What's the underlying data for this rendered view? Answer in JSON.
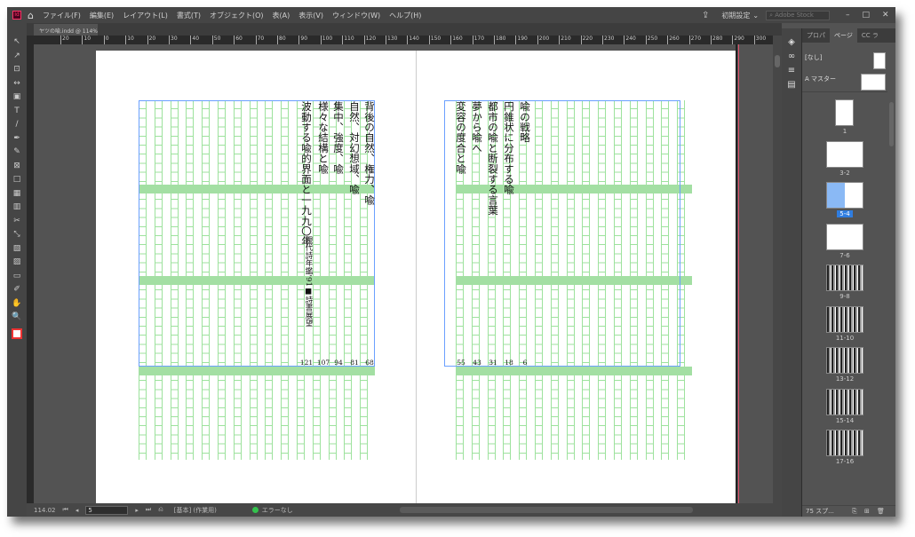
{
  "app": {
    "logo": "Id",
    "menus": [
      "ファイル(F)",
      "編集(E)",
      "レイアウト(L)",
      "書式(T)",
      "オブジェクト(O)",
      "表(A)",
      "表示(V)",
      "ウィンドウ(W)",
      "ヘルプ(H)"
    ],
    "workspace": "初期設定",
    "search_placeholder": "Adobe Stock",
    "document_tab": "ヤツの喩.indd @ 114%"
  },
  "ruler": {
    "labels": [
      "20",
      "10",
      "0",
      "10",
      "20",
      "30",
      "40",
      "50",
      "60",
      "70",
      "80",
      "90",
      "100",
      "110",
      "120",
      "130",
      "140",
      "150",
      "160",
      "170",
      "180",
      "190",
      "200",
      "210",
      "220",
      "230",
      "240",
      "250",
      "260",
      "270",
      "280",
      "290",
      "300",
      "31"
    ]
  },
  "tools": [
    "selection-icon",
    "direct-selection-icon",
    "page-tool-icon",
    "gap-tool-icon",
    "content-collector-icon",
    "type-icon",
    "line-icon",
    "pen-icon",
    "pencil-icon",
    "rectangle-frame-icon",
    "rectangle-icon",
    "frame-grid-icon",
    "grid-icon",
    "scissors-icon",
    "free-transform-icon",
    "gradient-swatch-icon",
    "gradient-feather-icon",
    "note-icon",
    "eyedropper-icon",
    "hand-icon",
    "zoom-icon"
  ],
  "left_page": {
    "columns": [
      "背後の自然、権力、喩",
      "自然、対幻想域、喩",
      "集中、強度、喩",
      "様々な結構と喩",
      "波動する喩的界面と一九九〇年"
    ],
    "sub": "現代詩年鑑'91■詩書展望",
    "page_numbers": [
      "68",
      "81",
      "94",
      "107",
      "121"
    ]
  },
  "right_page": {
    "columns": [
      "喩の戦略",
      "円錐状に分布する喩",
      "都市の喩と断裂する言葉",
      "夢から喩へ",
      "変容の度合と喩"
    ],
    "page_numbers": [
      "6",
      "18",
      "31",
      "43",
      "55"
    ]
  },
  "status": {
    "zoom": "114.02",
    "page": "5",
    "style": "[基本] (作業用)",
    "preflight": "エラーなし",
    "preflight_color": "#33c24d"
  },
  "panel": {
    "tabs": [
      "プロパ",
      "ページ",
      "CC ラ"
    ],
    "none_label": "[なし]",
    "master_label": "A マスター",
    "pages": [
      {
        "label": "1"
      },
      {
        "label": "3-2"
      },
      {
        "label": "5-4",
        "selected": true
      },
      {
        "label": "7-6"
      },
      {
        "label": "9-8"
      },
      {
        "label": "11-10"
      },
      {
        "label": "13-12"
      },
      {
        "label": "15-14"
      },
      {
        "label": "17-16"
      }
    ],
    "footer": "75 スプ..."
  }
}
